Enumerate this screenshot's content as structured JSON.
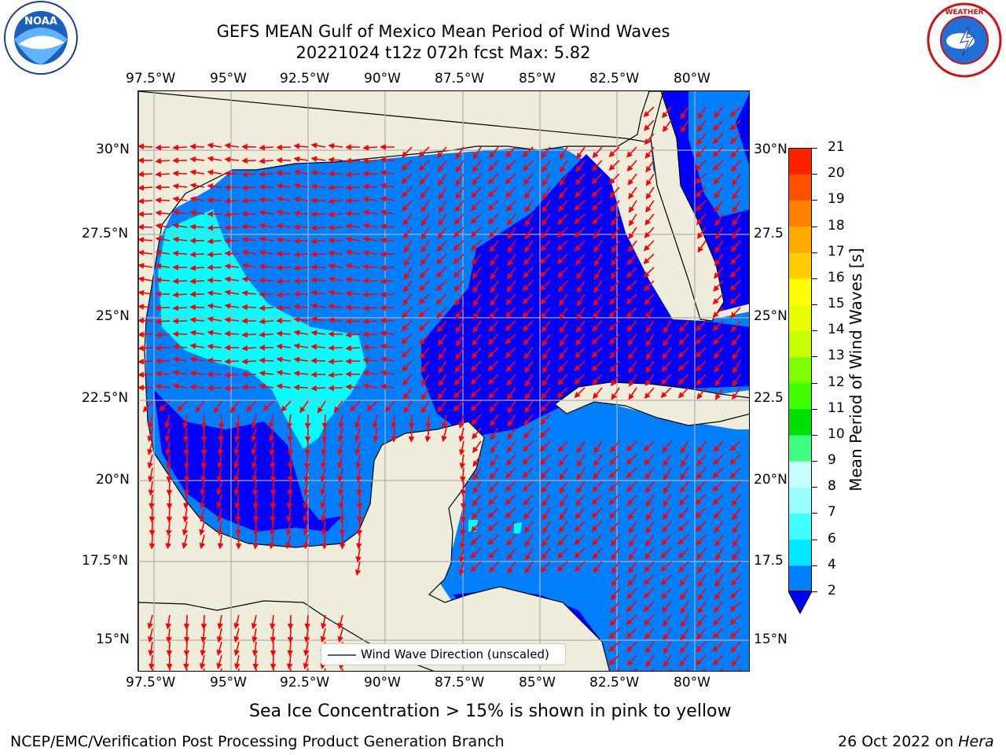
{
  "header": {
    "title_line1": "GEFS MEAN Gulf of Mexico Mean Period of Wind Waves",
    "title_line2": "20221024 t12z 072h fcst   Max: 5.82"
  },
  "logos": {
    "left": "NOAA",
    "right": "NATIONAL WEATHER SERVICE"
  },
  "map": {
    "lon_labels": [
      "97.5°W",
      "95°W",
      "92.5°W",
      "90°W",
      "87.5°W",
      "85°W",
      "82.5°W",
      "80°W"
    ],
    "lat_labels_left": [
      "30°N",
      "27.5°N",
      "25°N",
      "22.5°N",
      "20°N",
      "17.5°N",
      "15°N"
    ],
    "lat_labels_right": [
      "30°N",
      "27.5",
      "25°N",
      "22.5",
      "20°N",
      "17.5",
      "15°N"
    ],
    "legend_label": "Wind Wave Direction (unscaled)",
    "colors": {
      "land": "#eeeddb",
      "water_2_4": "#0080ff",
      "water_lt2": "#0000ff",
      "water_4_6": "#00ffff",
      "arrows": "#ff0000",
      "grid": "#b0b0b0",
      "coast": "#000000"
    }
  },
  "colorbar": {
    "label": "Mean Period of Wind Waves [s]",
    "ticks": [
      "2",
      "4",
      "6",
      "7",
      "8",
      "9",
      "10",
      "11",
      "12",
      "13",
      "14",
      "15",
      "16",
      "17",
      "18",
      "19",
      "20",
      "21"
    ],
    "colors": [
      "#0080ff",
      "#00e8ff",
      "#40ffff",
      "#9bffff",
      "#c8ffff",
      "#40ff80",
      "#00e000",
      "#40ff00",
      "#80ff00",
      "#c8ff00",
      "#e8ff00",
      "#ffff00",
      "#ffcc00",
      "#ffaa00",
      "#ff8000",
      "#ff5000",
      "#ff2000",
      "#ff0000"
    ],
    "under_color": "#0000ff"
  },
  "footer": {
    "note": "Sea Ice Concentration > 15% is shown in pink to yellow",
    "left": "NCEP/EMC/Verification Post Processing Product Generation Branch",
    "right_date": "26 Oct 2022 on ",
    "right_host": "Hera"
  }
}
